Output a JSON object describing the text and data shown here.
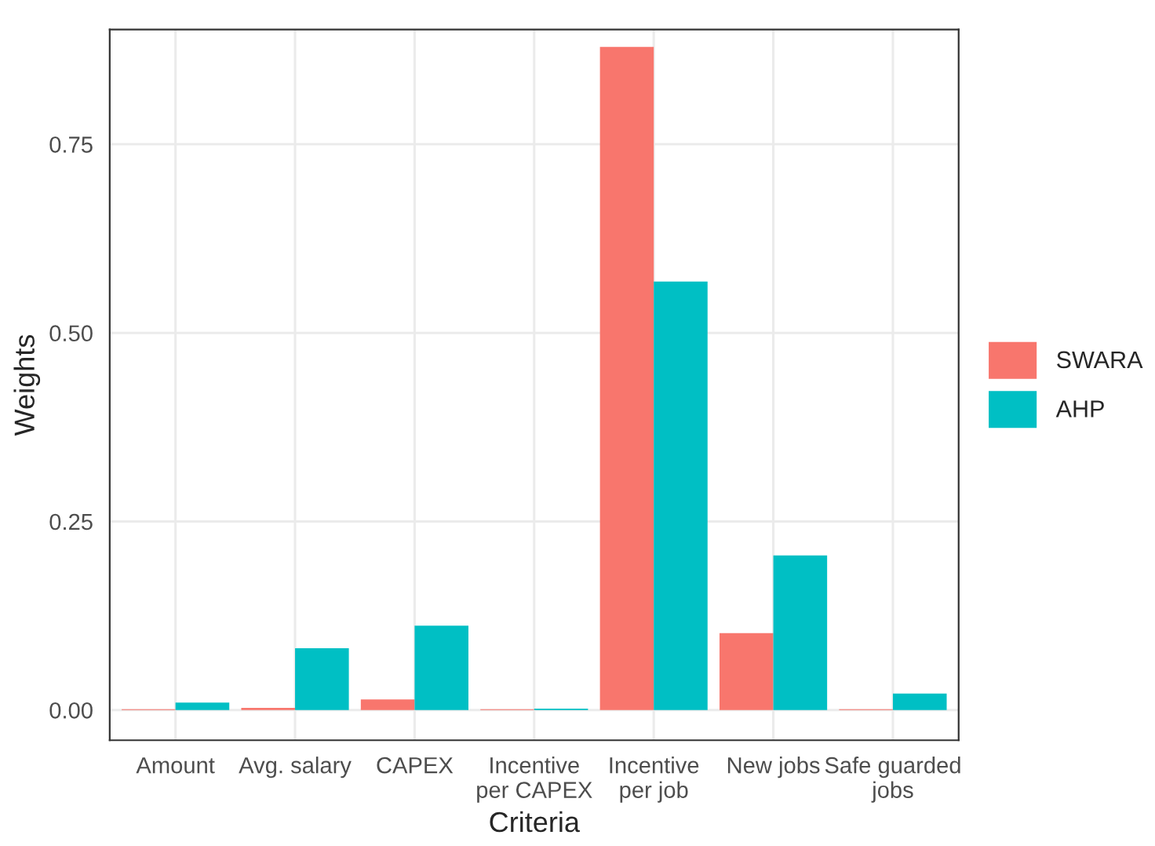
{
  "chart_data": {
    "type": "bar",
    "xlabel": "Criteria",
    "ylabel": "Weights",
    "categories": [
      "Amount",
      "Avg. salary",
      "CAPEX",
      "Incentive\nper CAPEX",
      "Incentive\nper job",
      "New jobs",
      "Safe guarded\njobs"
    ],
    "series": [
      {
        "name": "SWARA",
        "color": "#f8766d",
        "values": [
          0.001,
          0.003,
          0.014,
          0.001,
          0.879,
          0.102,
          0.001
        ]
      },
      {
        "name": "AHP",
        "color": "#00bfc4",
        "values": [
          0.01,
          0.082,
          0.112,
          0.002,
          0.568,
          0.205,
          0.022
        ]
      }
    ],
    "ylim": [
      -0.04,
      0.902
    ],
    "yticks": [
      {
        "value": 0,
        "label": "0.00"
      },
      {
        "value": 0.25,
        "label": "0.25"
      },
      {
        "value": 0.5,
        "label": "0.50"
      },
      {
        "value": 0.75,
        "label": "0.75"
      }
    ],
    "grid": true,
    "legend": "right"
  }
}
